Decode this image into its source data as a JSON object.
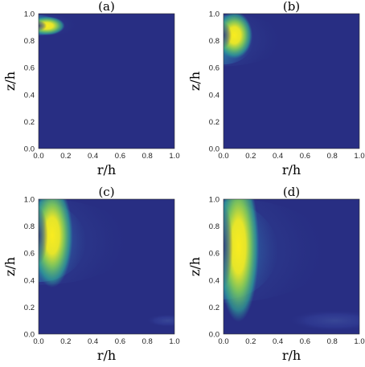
{
  "chart_data": [
    {
      "type": "heatmap",
      "title": "(a)",
      "xlabel": "r/h",
      "ylabel": "z/h",
      "xlim": [
        0,
        1
      ],
      "ylim": [
        0,
        1
      ],
      "xticks": [
        "0.0",
        "0.2",
        "0.4",
        "0.6",
        "0.8",
        "1.0"
      ],
      "yticks": [
        "0.0",
        "0.2",
        "0.4",
        "0.6",
        "0.8",
        "1.0"
      ],
      "colormap": [
        "#282e83",
        "#2a8a9a",
        "#f9ec1f"
      ],
      "background_color": "#282e83",
      "peak": {
        "r": 0.06,
        "z": 0.91,
        "r_half_width": 0.07,
        "z_half_width": 0.04
      },
      "glow": {
        "r": 0.05,
        "z": 0.91,
        "r_extent": 0.3,
        "z_top": 0.99,
        "z_bottom": 0.84
      },
      "faint_region": null
    },
    {
      "type": "heatmap",
      "title": "(b)",
      "xlabel": "r/h",
      "ylabel": "z/h",
      "xlim": [
        0,
        1
      ],
      "ylim": [
        0,
        1
      ],
      "xticks": [
        "0.0",
        "0.2",
        "0.4",
        "0.6",
        "0.8",
        "1.0"
      ],
      "yticks": [
        "0.0",
        "0.2",
        "0.4",
        "0.6",
        "0.8",
        "1.0"
      ],
      "colormap": [
        "#282e83",
        "#2a8a9a",
        "#f9ec1f"
      ],
      "background_color": "#282e83",
      "peak": {
        "r": 0.08,
        "z": 0.84,
        "r_half_width": 0.07,
        "z_half_width": 0.1
      },
      "glow": {
        "r": 0.06,
        "z": 0.86,
        "r_extent": 0.45,
        "z_top": 0.99,
        "z_bottom": 0.62
      },
      "faint_region": null
    },
    {
      "type": "heatmap",
      "title": "(c)",
      "xlabel": "r/h",
      "ylabel": "z/h",
      "xlim": [
        0,
        1
      ],
      "ylim": [
        0,
        1
      ],
      "xticks": [
        "0.0",
        "0.2",
        "0.4",
        "0.6",
        "0.8",
        "1.0"
      ],
      "yticks": [
        "0.0",
        "0.2",
        "0.4",
        "0.6",
        "0.8",
        "1.0"
      ],
      "colormap": [
        "#282e83",
        "#2a8a9a",
        "#f9ec1f"
      ],
      "background_color": "#282e83",
      "peak": {
        "r": 0.1,
        "z": 0.73,
        "r_half_width": 0.08,
        "z_half_width": 0.22
      },
      "glow": {
        "r": 0.08,
        "z": 0.73,
        "r_extent": 0.7,
        "z_top": 0.99,
        "z_bottom": 0.38
      },
      "faint_region": {
        "r": 0.95,
        "z": 0.1,
        "r_half_width": 0.1,
        "z_half_width": 0.03
      }
    },
    {
      "type": "heatmap",
      "title": "(d)",
      "xlabel": "r/h",
      "ylabel": "z/h",
      "xlim": [
        0,
        1
      ],
      "ylim": [
        0,
        1
      ],
      "xticks": [
        "0.0",
        "0.2",
        "0.4",
        "0.6",
        "0.8",
        "1.0"
      ],
      "yticks": [
        "0.0",
        "0.2",
        "0.4",
        "0.6",
        "0.8",
        "1.0"
      ],
      "colormap": [
        "#282e83",
        "#2a8a9a",
        "#f9ec1f"
      ],
      "background_color": "#282e83",
      "peak": {
        "r": 0.11,
        "z": 0.65,
        "r_half_width": 0.08,
        "z_half_width": 0.32
      },
      "glow": {
        "r": 0.08,
        "z": 0.65,
        "r_extent": 0.8,
        "z_top": 0.99,
        "z_bottom": 0.25
      },
      "faint_region": {
        "r": 0.82,
        "z": 0.1,
        "r_half_width": 0.22,
        "z_half_width": 0.05
      }
    }
  ]
}
